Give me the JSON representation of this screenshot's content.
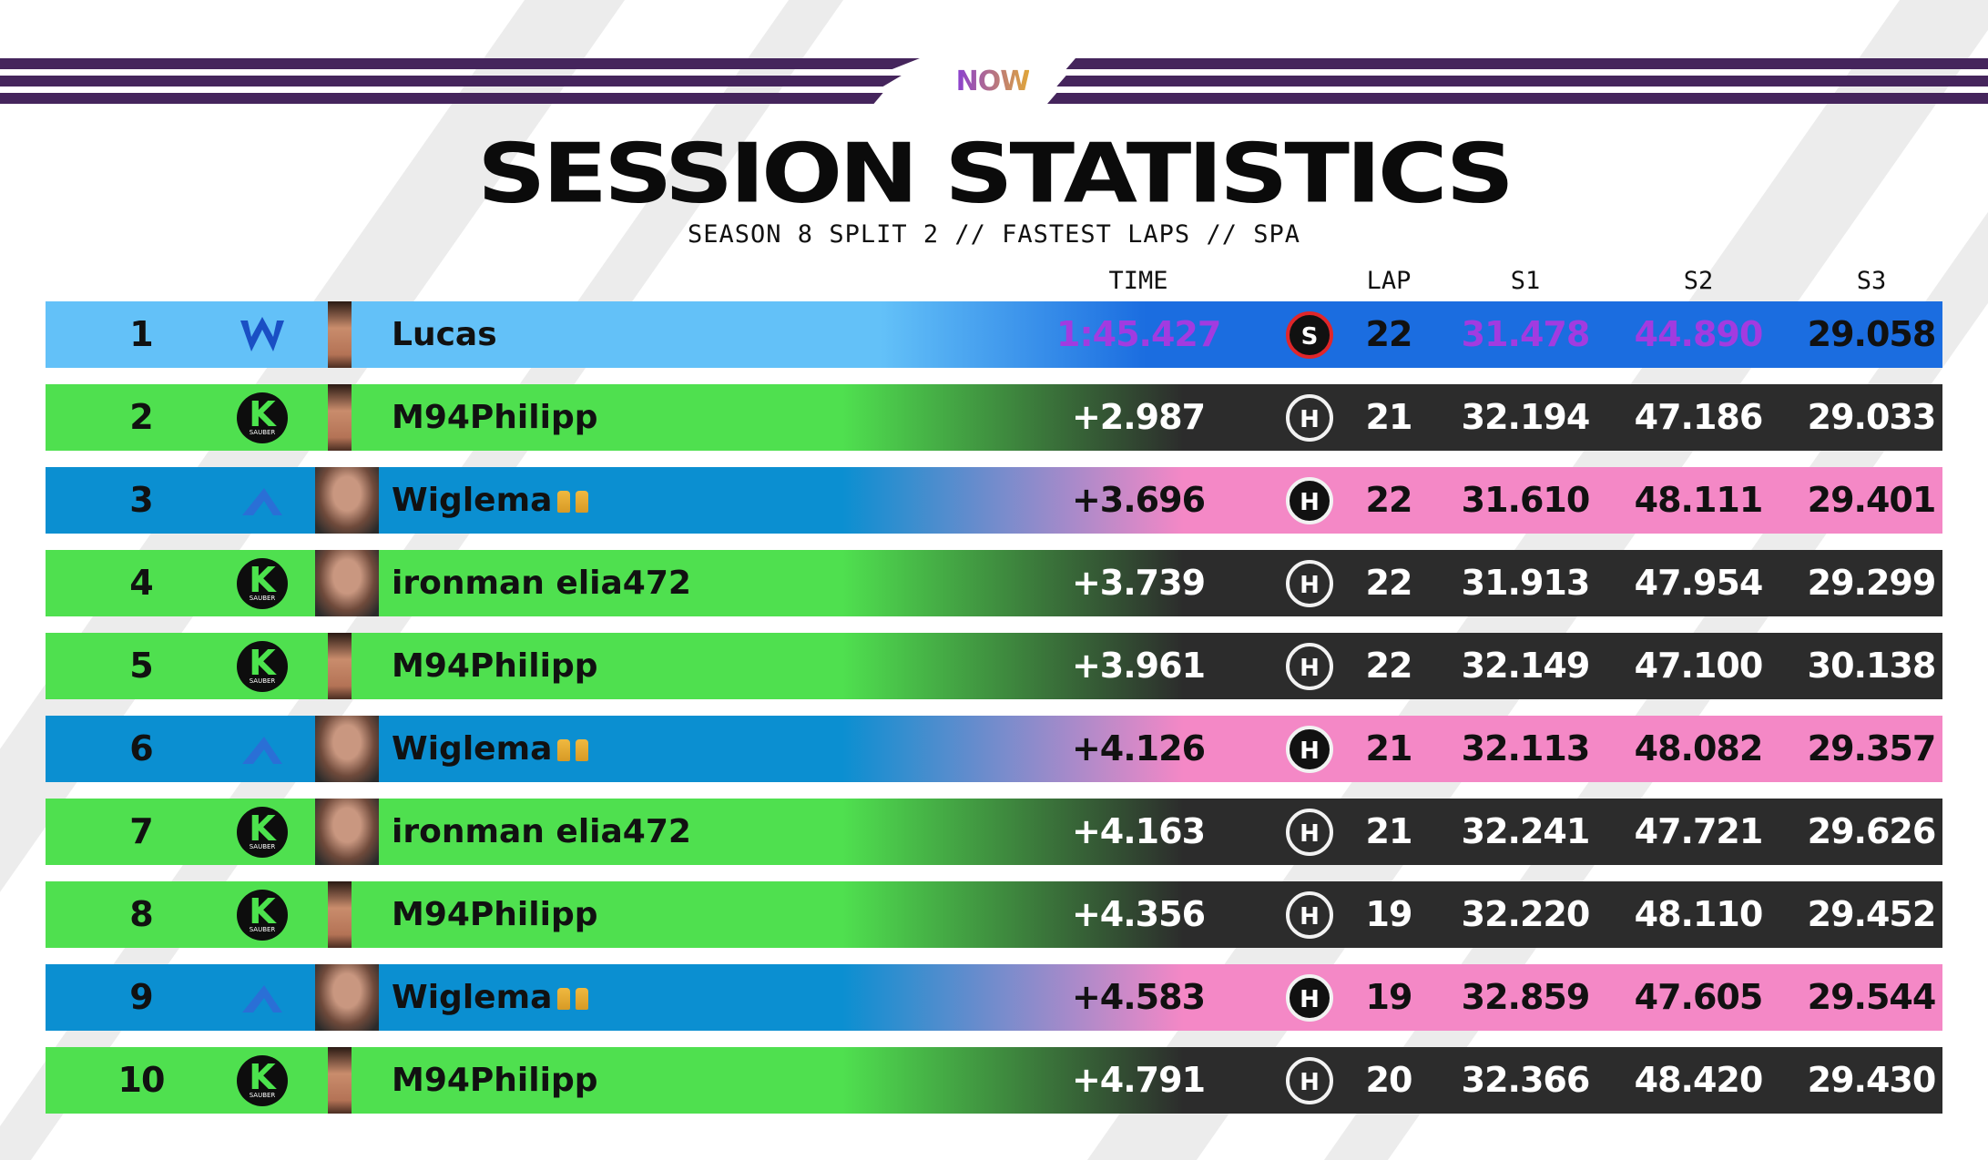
{
  "header": {
    "logo_text": "NOW",
    "title": "SESSION STATISTICS",
    "subtitle": "SEASON 8 SPLIT 2 // FASTEST LAPS // SPA"
  },
  "columns": {
    "time": "TIME",
    "lap": "LAP",
    "s1": "S1",
    "s2": "S2",
    "s3": "S3"
  },
  "colors": {
    "bar_purple": "#45255c",
    "williams_light": "#63c1f8",
    "williams_dark": "#1b6de0",
    "sauber_green": "#4fe04f",
    "dark_panel": "#2c2c2c",
    "alpine_blue": "#0b8fd1",
    "alpine_pink": "#f488c6",
    "fastest_purple": "#a23be0",
    "trophy_gold": "#f0b940"
  },
  "rows": [
    {
      "pos": "1",
      "team": "williams",
      "team_icon": "williams-logo-icon",
      "driver": "Lucas",
      "trophies": 0,
      "time": "1:45.427",
      "tyre": "S",
      "tyre_name": "soft-tyre-icon",
      "lap": "22",
      "s1": "31.478",
      "s2": "44.890",
      "s3": "29.058",
      "fastest": [
        "time",
        "s1",
        "s2"
      ]
    },
    {
      "pos": "2",
      "team": "sauber",
      "team_icon": "sauber-logo-icon",
      "driver": "M94Philipp",
      "trophies": 0,
      "time": "+2.987",
      "tyre": "H",
      "tyre_name": "hard-tyre-icon",
      "lap": "21",
      "s1": "32.194",
      "s2": "47.186",
      "s3": "29.033",
      "fastest": [
        "s3"
      ]
    },
    {
      "pos": "3",
      "team": "alpine",
      "team_icon": "alpine-logo-icon",
      "driver": "Wiglema",
      "trophies": 2,
      "time": "+3.696",
      "tyre": "H",
      "tyre_name": "hard-tyre-icon",
      "lap": "22",
      "s1": "31.610",
      "s2": "48.111",
      "s3": "29.401",
      "fastest": []
    },
    {
      "pos": "4",
      "team": "sauber",
      "team_icon": "sauber-logo-icon",
      "driver": "ironman elia472",
      "trophies": 0,
      "time": "+3.739",
      "tyre": "H",
      "tyre_name": "hard-tyre-icon",
      "lap": "22",
      "s1": "31.913",
      "s2": "47.954",
      "s3": "29.299",
      "fastest": []
    },
    {
      "pos": "5",
      "team": "sauber",
      "team_icon": "sauber-logo-icon",
      "driver": "M94Philipp",
      "trophies": 0,
      "time": "+3.961",
      "tyre": "H",
      "tyre_name": "hard-tyre-icon",
      "lap": "22",
      "s1": "32.149",
      "s2": "47.100",
      "s3": "30.138",
      "fastest": []
    },
    {
      "pos": "6",
      "team": "alpine",
      "team_icon": "alpine-logo-icon",
      "driver": "Wiglema",
      "trophies": 2,
      "time": "+4.126",
      "tyre": "H",
      "tyre_name": "hard-tyre-icon",
      "lap": "21",
      "s1": "32.113",
      "s2": "48.082",
      "s3": "29.357",
      "fastest": []
    },
    {
      "pos": "7",
      "team": "sauber",
      "team_icon": "sauber-logo-icon",
      "driver": "ironman elia472",
      "trophies": 0,
      "time": "+4.163",
      "tyre": "H",
      "tyre_name": "hard-tyre-icon",
      "lap": "21",
      "s1": "32.241",
      "s2": "47.721",
      "s3": "29.626",
      "fastest": []
    },
    {
      "pos": "8",
      "team": "sauber",
      "team_icon": "sauber-logo-icon",
      "driver": "M94Philipp",
      "trophies": 0,
      "time": "+4.356",
      "tyre": "H",
      "tyre_name": "hard-tyre-icon",
      "lap": "19",
      "s1": "32.220",
      "s2": "48.110",
      "s3": "29.452",
      "fastest": []
    },
    {
      "pos": "9",
      "team": "alpine",
      "team_icon": "alpine-logo-icon",
      "driver": "Wiglema",
      "trophies": 2,
      "time": "+4.583",
      "tyre": "H",
      "tyre_name": "hard-tyre-icon",
      "lap": "19",
      "s1": "32.859",
      "s2": "47.605",
      "s3": "29.544",
      "fastest": []
    },
    {
      "pos": "10",
      "team": "sauber",
      "team_icon": "sauber-logo-icon",
      "driver": "M94Philipp",
      "trophies": 0,
      "time": "+4.791",
      "tyre": "H",
      "tyre_name": "hard-tyre-icon",
      "lap": "20",
      "s1": "32.366",
      "s2": "48.420",
      "s3": "29.430",
      "fastest": []
    }
  ]
}
